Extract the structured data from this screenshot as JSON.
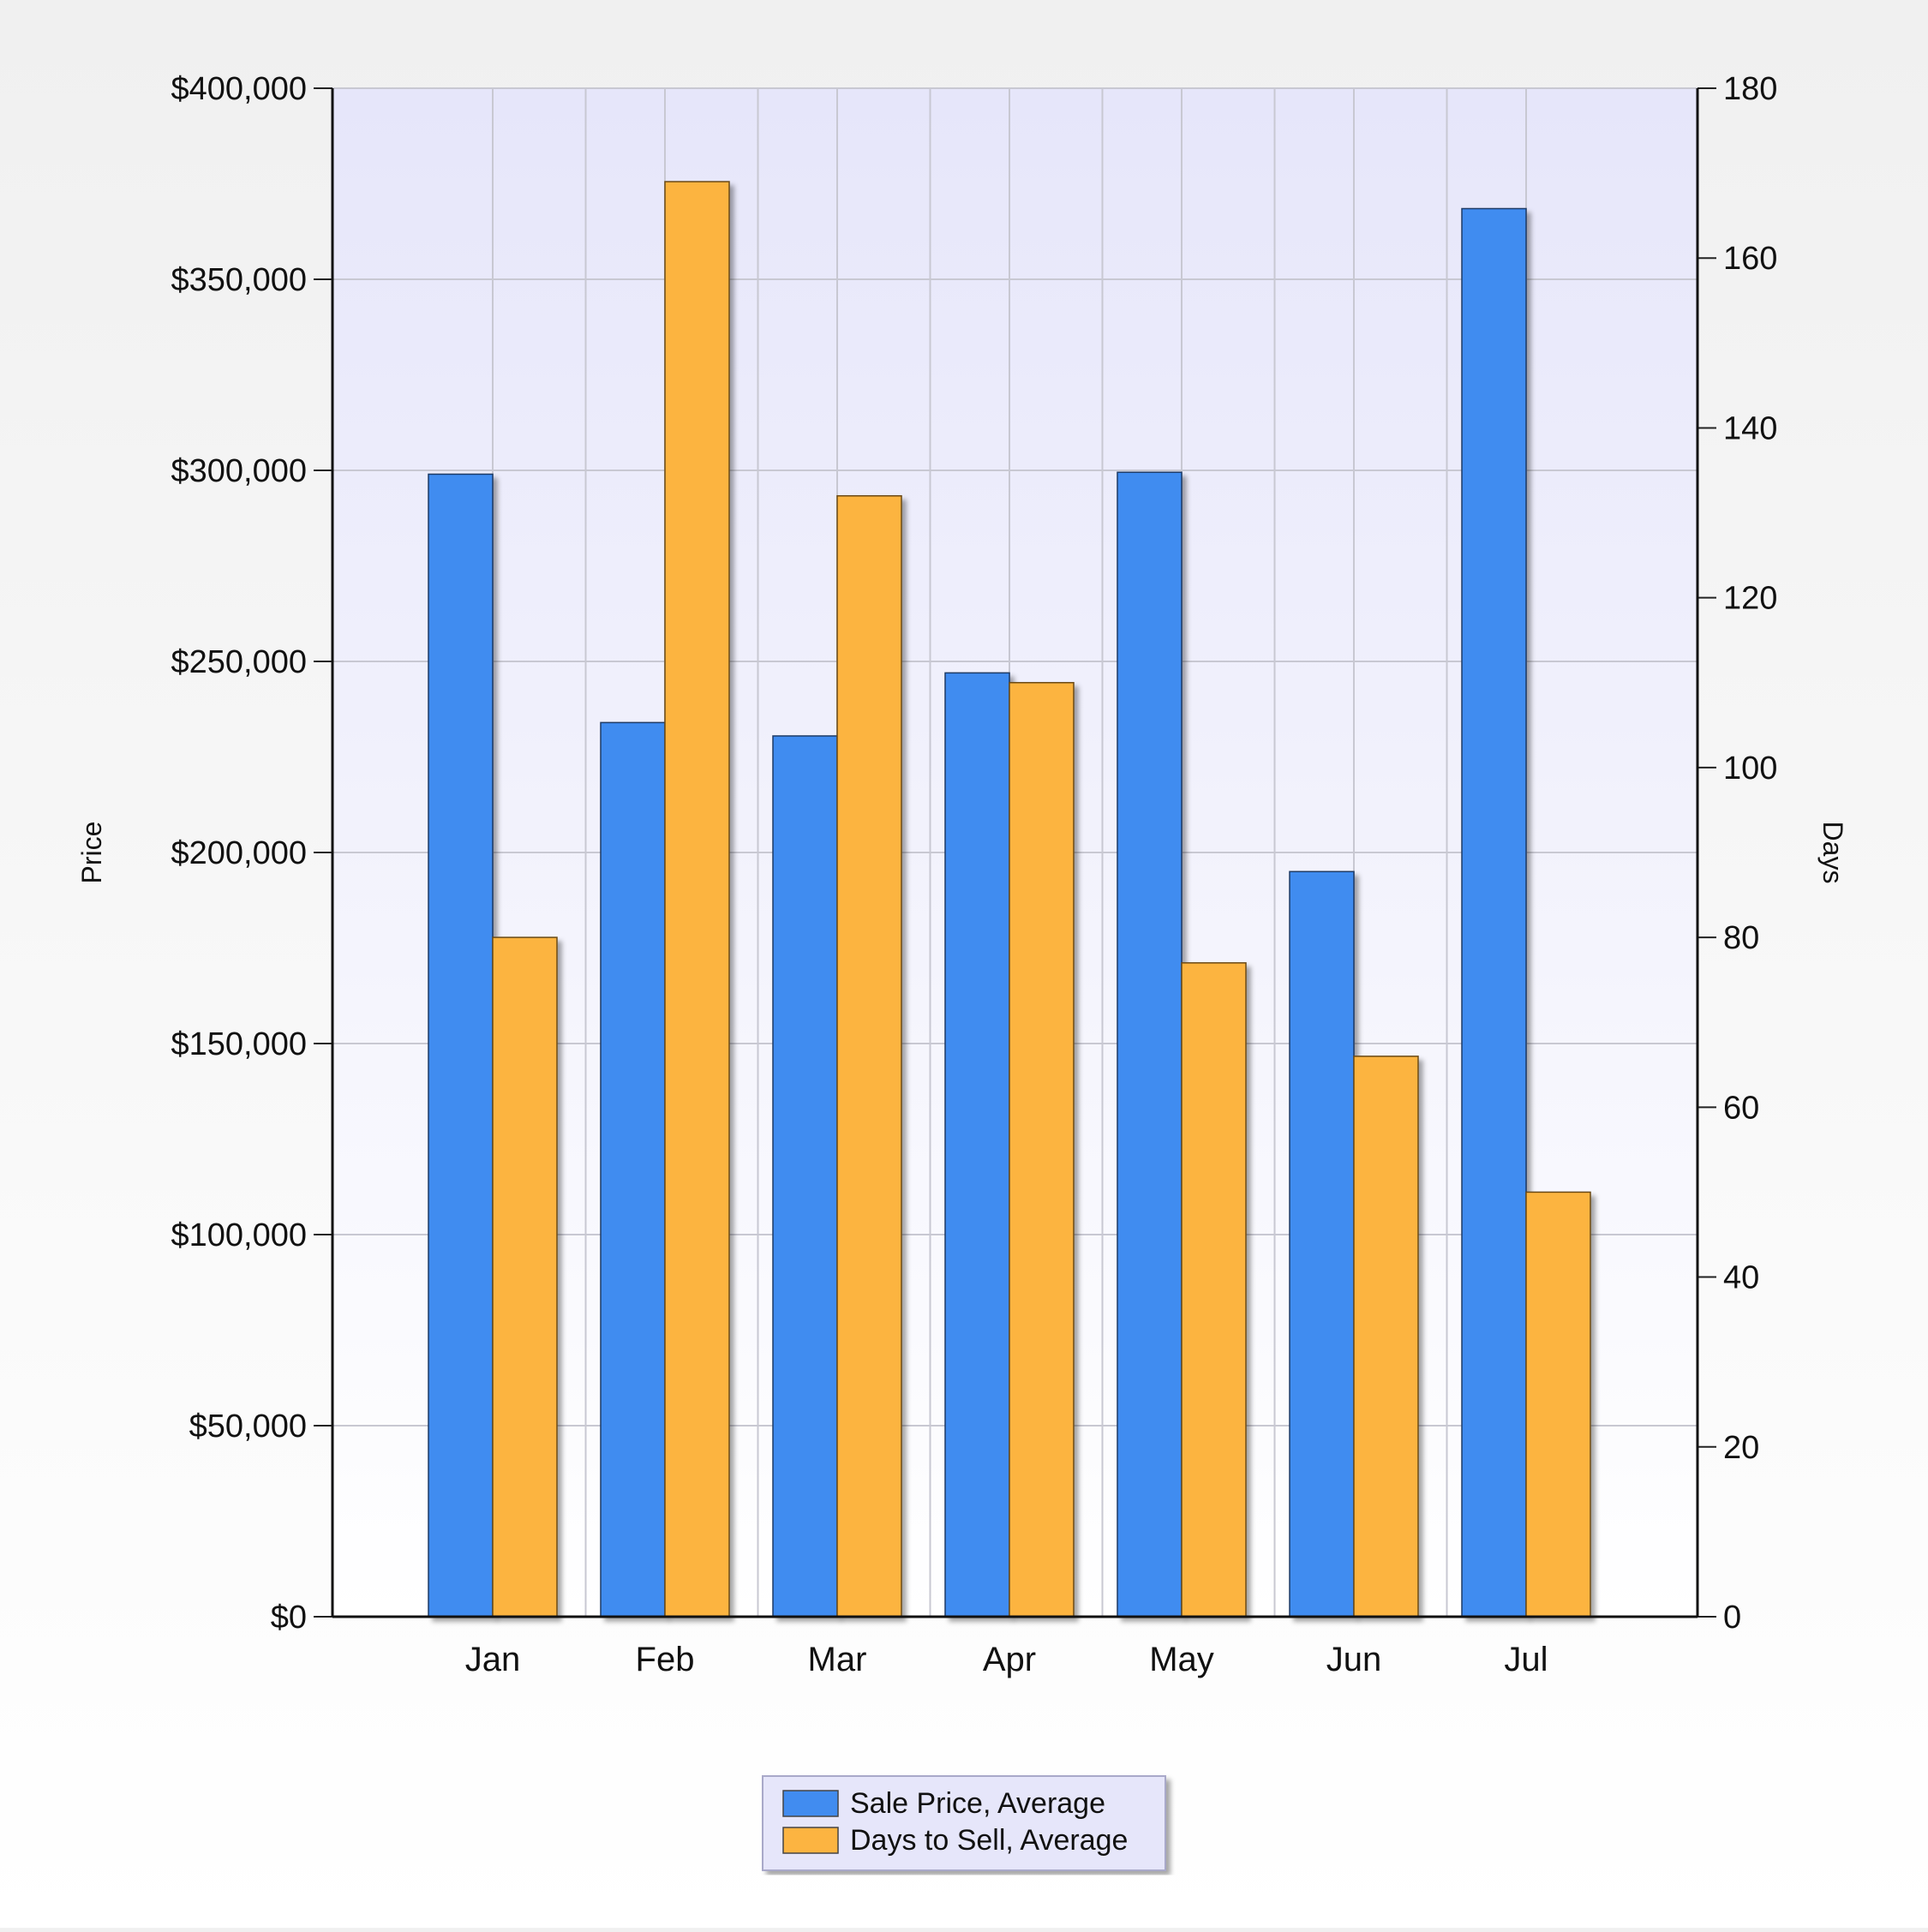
{
  "chart_data": {
    "type": "bar",
    "categories": [
      "Jan",
      "Feb",
      "Mar",
      "Apr",
      "May",
      "Jun",
      "Jul"
    ],
    "series": [
      {
        "name": "Sale Price, Average",
        "axis": "left",
        "color": "#418cf0",
        "values": [
          299000,
          234000,
          230500,
          247000,
          299500,
          195000,
          368500
        ]
      },
      {
        "name": "Days to Sell, Average",
        "axis": "right",
        "color": "#fcb441",
        "values": [
          80,
          169,
          132,
          110,
          77,
          66,
          50
        ]
      }
    ],
    "ylabel_left": "Price",
    "ylabel_right": "Days",
    "ylim_left": [
      0,
      400000
    ],
    "ylim_right": [
      0,
      180
    ],
    "yticks_left": [
      "$0",
      "$50,000",
      "$100,000",
      "$150,000",
      "$200,000",
      "$250,000",
      "$300,000",
      "$350,000",
      "$400,000"
    ],
    "yticks_right": [
      "0",
      "20",
      "40",
      "60",
      "80",
      "100",
      "120",
      "140",
      "160",
      "180"
    ],
    "grid": true,
    "legend_position": "bottom-center",
    "plot_background": "#e6e6fa"
  }
}
